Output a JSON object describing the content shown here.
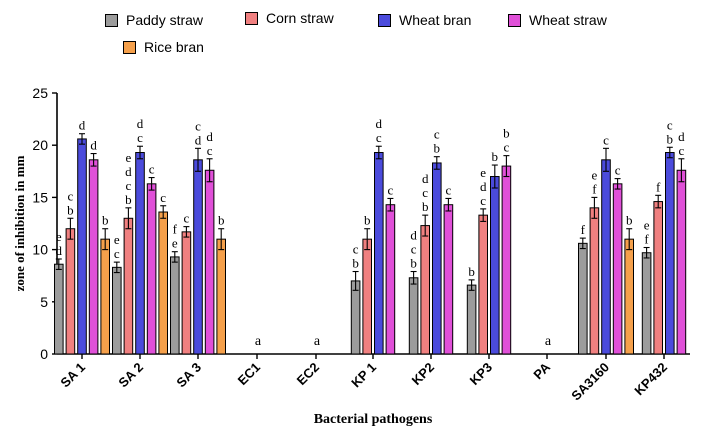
{
  "chart_data": {
    "type": "bar",
    "title": "",
    "xlabel": "Bacterial pathogens",
    "ylabel": "zone of inhibition in mm",
    "ylim": [
      0,
      25
    ],
    "yticks": [
      "0",
      "5",
      "10",
      "15",
      "20",
      "25"
    ],
    "categories": [
      "SA 1",
      "SA 2",
      "SA 3",
      "EC1",
      "EC2",
      "KP 1",
      "KP2",
      "KP3",
      "PA",
      "SA3160",
      "KP432"
    ],
    "series": [
      {
        "name": "Paddy straw",
        "color": "#9c9c9c",
        "values": [
          8.6,
          8.3,
          9.3,
          0,
          0,
          7.0,
          7.3,
          6.6,
          0,
          10.6,
          9.7
        ],
        "errors": [
          0.5,
          0.5,
          0.5,
          0,
          0,
          0.9,
          0.6,
          0.5,
          0,
          0.5,
          0.5
        ],
        "letters": [
          [
            "e",
            "d"
          ],
          [
            "e",
            "c"
          ],
          [
            "f",
            "e"
          ],
          [],
          [],
          [
            "c",
            "b"
          ],
          [
            "d",
            "c",
            "b"
          ],
          [
            "b"
          ],
          [],
          [
            "f"
          ],
          [
            "e",
            "f"
          ]
        ]
      },
      {
        "name": "Corn straw",
        "color": "#f08080",
        "values": [
          12.0,
          13.0,
          11.7,
          0,
          0,
          11.0,
          12.3,
          13.3,
          0,
          14.0,
          14.6
        ],
        "errors": [
          1.0,
          1.0,
          0.5,
          0,
          0,
          1.0,
          1.0,
          0.6,
          0,
          1.0,
          0.6
        ],
        "letters": [
          [
            "c",
            "b"
          ],
          [
            "e",
            "d",
            "c",
            "b"
          ],
          [
            "c"
          ],
          [],
          [],
          [
            "b"
          ],
          [
            "d",
            "c",
            "b"
          ],
          [
            "e",
            "d",
            "c"
          ],
          [],
          [
            "e",
            "f"
          ],
          [
            "f"
          ]
        ]
      },
      {
        "name": "Wheat bran",
        "color": "#4b4bdc",
        "values": [
          20.6,
          19.3,
          18.6,
          0,
          0,
          19.3,
          18.3,
          17.0,
          0,
          18.6,
          19.3
        ],
        "errors": [
          0.5,
          0.6,
          1.1,
          0,
          0,
          0.6,
          0.6,
          1.1,
          0,
          1.1,
          0.5
        ],
        "letters": [
          [
            "d"
          ],
          [
            "d",
            "c"
          ],
          [
            "c",
            "d"
          ],
          [],
          [],
          [
            "d",
            "c"
          ],
          [
            "c",
            "b"
          ],
          [
            "b"
          ],
          [],
          [
            "c"
          ],
          [
            "c",
            "b"
          ]
        ]
      },
      {
        "name": "Wheat straw",
        "color": "#e050d8",
        "values": [
          18.6,
          16.3,
          17.6,
          0,
          0,
          14.3,
          14.3,
          18.0,
          0,
          16.3,
          17.6
        ],
        "errors": [
          0.6,
          0.6,
          1.1,
          0,
          0,
          0.6,
          0.6,
          1.0,
          0,
          0.5,
          1.1
        ],
        "letters": [
          [
            "d"
          ],
          [
            "c"
          ],
          [
            "d",
            "c"
          ],
          [],
          [],
          [
            "c"
          ],
          [
            "c"
          ],
          [
            "b",
            "c"
          ],
          [],
          [
            "c"
          ],
          [
            "d",
            "c"
          ]
        ]
      },
      {
        "name": "Rice bran",
        "color": "#f5a04b",
        "values": [
          11.0,
          13.6,
          11.0,
          0,
          0,
          0,
          0,
          0,
          0,
          11.0,
          0
        ],
        "errors": [
          1.0,
          0.6,
          1.0,
          0,
          0,
          0,
          0,
          0,
          0,
          1.0,
          0
        ],
        "letters": [
          [
            "b"
          ],
          [
            "c"
          ],
          [
            "b"
          ],
          [],
          [],
          [],
          [],
          [],
          [],
          [
            "b"
          ],
          []
        ]
      }
    ],
    "zero_group_letters": {
      "EC1": "a",
      "EC2": "a",
      "PA": "a"
    },
    "legend_position": "top"
  }
}
